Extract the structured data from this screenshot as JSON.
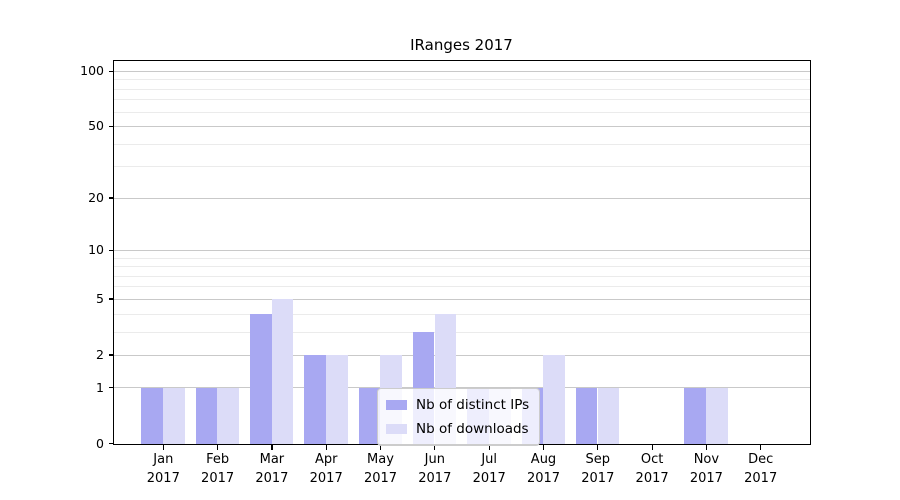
{
  "chart_data": {
    "type": "bar",
    "title": "IRanges 2017",
    "year_label": "2017",
    "categories": [
      "Jan",
      "Feb",
      "Mar",
      "Apr",
      "May",
      "Jun",
      "Jul",
      "Aug",
      "Sep",
      "Oct",
      "Nov",
      "Dec"
    ],
    "series": [
      {
        "name": "Nb of distinct IPs",
        "color": "#a8a8f2",
        "values": [
          1,
          1,
          4,
          2,
          1,
          3,
          1,
          1,
          1,
          0,
          1,
          0
        ]
      },
      {
        "name": "Nb of downloads",
        "color": "#dcdcf8",
        "values": [
          1,
          1,
          5,
          2,
          2,
          4,
          1,
          2,
          1,
          0,
          1,
          0
        ]
      }
    ],
    "xlabel": "",
    "ylabel": "",
    "yscale": "log1p",
    "ylim": [
      0,
      113
    ],
    "yticks": [
      0,
      1,
      2,
      5,
      10,
      20,
      50,
      100
    ],
    "y_minor_gridlines": [
      3,
      4,
      6,
      7,
      8,
      9,
      30,
      40,
      60,
      70,
      80,
      90
    ],
    "grid": true,
    "legend_position": "lower center inside",
    "colors": {
      "grid_major": "#c9c9c9",
      "grid_minor": "#ebebeb",
      "axis": "#000000",
      "background": "#ffffff"
    }
  }
}
